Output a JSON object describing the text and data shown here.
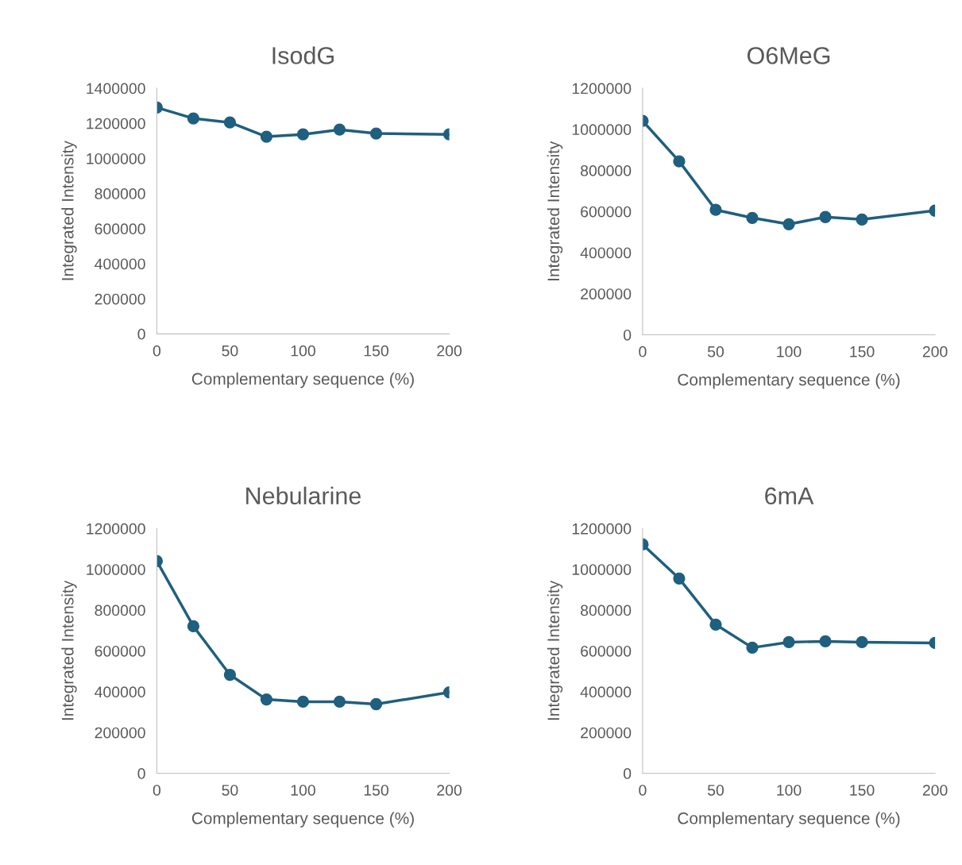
{
  "chart_data": [
    {
      "type": "line",
      "title": "IsodG",
      "xlabel": "Complementary sequence (%)",
      "ylabel": "Integrated Intensity",
      "x": [
        0,
        25,
        50,
        75,
        100,
        125,
        150,
        200
      ],
      "series": [
        {
          "color": "#1f5f7f",
          "values": [
            1290000,
            1228000,
            1205000,
            1124000,
            1137000,
            1164000,
            1142000,
            1137000
          ]
        }
      ],
      "xlim": [
        0,
        200
      ],
      "xticks": [
        0,
        50,
        100,
        150,
        200
      ],
      "ylim": [
        0,
        1400000
      ],
      "yticks": [
        0,
        200000,
        400000,
        600000,
        800000,
        1000000,
        1200000,
        1400000
      ],
      "grid": false,
      "legend": false,
      "marker": "circle",
      "line_style": "solid"
    },
    {
      "type": "line",
      "title": "O6MeG",
      "xlabel": "Complementary sequence (%)",
      "ylabel": "Integrated Intensity",
      "x": [
        0,
        25,
        50,
        75,
        100,
        125,
        150,
        200
      ],
      "series": [
        {
          "color": "#1f5f7f",
          "values": [
            1041000,
            844000,
            608000,
            569000,
            538000,
            573000,
            561000,
            604000
          ]
        }
      ],
      "xlim": [
        0,
        200
      ],
      "xticks": [
        0,
        50,
        100,
        150,
        200
      ],
      "ylim": [
        0,
        1200000
      ],
      "yticks": [
        0,
        200000,
        400000,
        600000,
        800000,
        1000000,
        1200000
      ],
      "grid": false,
      "legend": false,
      "marker": "circle",
      "line_style": "solid"
    },
    {
      "type": "line",
      "title": "Nebularine",
      "xlabel": "Complementary sequence (%)",
      "ylabel": "Integrated Intensity",
      "x": [
        0,
        25,
        50,
        75,
        100,
        125,
        150,
        200
      ],
      "series": [
        {
          "color": "#1f5f7f",
          "values": [
            1040000,
            721000,
            483000,
            362000,
            351000,
            351000,
            339000,
            397000
          ]
        }
      ],
      "xlim": [
        0,
        200
      ],
      "xticks": [
        0,
        50,
        100,
        150,
        200
      ],
      "ylim": [
        0,
        1200000
      ],
      "yticks": [
        0,
        200000,
        400000,
        600000,
        800000,
        1000000,
        1200000
      ],
      "grid": false,
      "legend": false,
      "marker": "circle",
      "line_style": "solid"
    },
    {
      "type": "line",
      "title": "6mA",
      "xlabel": "Complementary sequence (%)",
      "ylabel": "Integrated Intensity",
      "x": [
        0,
        25,
        50,
        75,
        100,
        125,
        150,
        200
      ],
      "series": [
        {
          "color": "#1f5f7f",
          "values": [
            1122000,
            955000,
            729000,
            616000,
            643000,
            647000,
            643000,
            639000
          ]
        }
      ],
      "xlim": [
        0,
        200
      ],
      "xticks": [
        0,
        50,
        100,
        150,
        200
      ],
      "ylim": [
        0,
        1200000
      ],
      "yticks": [
        0,
        200000,
        400000,
        600000,
        800000,
        1000000,
        1200000
      ],
      "grid": false,
      "legend": false,
      "marker": "circle",
      "line_style": "solid"
    }
  ]
}
